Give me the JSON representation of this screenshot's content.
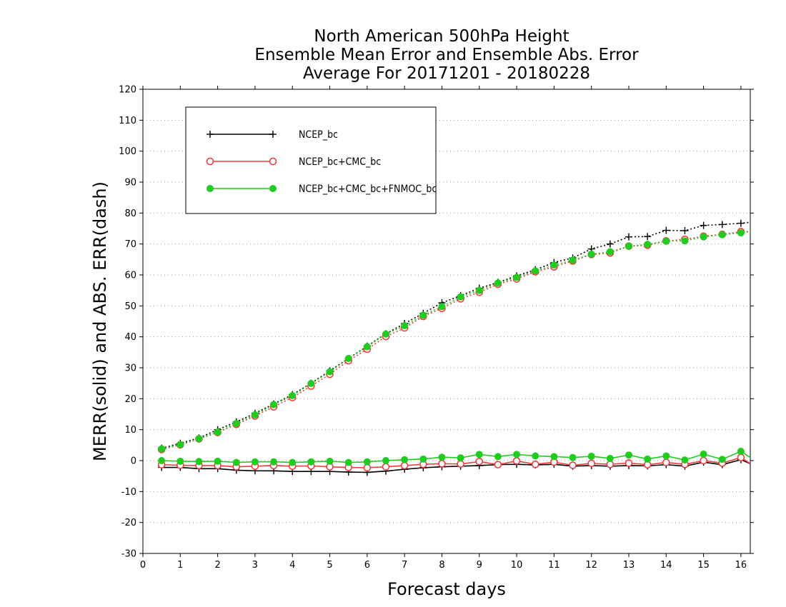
{
  "chart_data": {
    "type": "line",
    "title_lines": [
      "North American 500hPa Height",
      "Ensemble Mean Error and Ensemble Abs. Error",
      "Average For 20171201 - 20180228"
    ],
    "xlabel": "Forecast days",
    "ylabel": "MERR(solid) and ABS. ERR(dash)",
    "xlim": [
      0,
      16.25
    ],
    "ylim": [
      -30,
      120
    ],
    "x_ticks": [
      "0",
      "1",
      "2",
      "3",
      "4",
      "5",
      "6",
      "7",
      "8",
      "9",
      "10",
      "11",
      "12",
      "13",
      "14",
      "15",
      "16"
    ],
    "y_ticks": [
      "120",
      "110",
      "100",
      "90",
      "80",
      "70",
      "60",
      "50",
      "40",
      "30",
      "20",
      "10",
      "0",
      "-10",
      "-20",
      "-30"
    ],
    "grid": true,
    "legend_position": "top-left",
    "x": [
      0.5,
      1,
      1.5,
      2,
      2.5,
      3,
      3.5,
      4,
      4.5,
      5,
      5.5,
      6,
      6.5,
      7,
      7.5,
      8,
      8.5,
      9,
      9.5,
      10,
      10.5,
      11,
      11.5,
      12,
      12.5,
      13,
      13.5,
      14,
      14.5,
      15,
      15.5,
      16,
      16.25
    ],
    "series": [
      {
        "name": "NCEP_bc",
        "color": "#000000",
        "marker": "plus",
        "merr": [
          -2.2,
          -2.2,
          -2.6,
          -2.6,
          -3.1,
          -3.3,
          -3.3,
          -3.5,
          -3.5,
          -3.5,
          -3.7,
          -3.8,
          -3.4,
          -2.8,
          -2.3,
          -2.0,
          -1.8,
          -1.6,
          -1.3,
          -1.2,
          -1.4,
          -1.2,
          -1.8,
          -1.6,
          -1.8,
          -1.6,
          -1.7,
          -1.3,
          -1.8,
          -0.5,
          -1.3,
          0.3,
          -1.0
        ],
        "abs_err": [
          4.0,
          5.6,
          7.3,
          10.0,
          12.5,
          15.3,
          18.3,
          21.3,
          25.0,
          29.0,
          33.0,
          37.0,
          41.0,
          44.3,
          47.6,
          51.0,
          53.3,
          55.7,
          57.6,
          59.7,
          61.7,
          64.0,
          65.5,
          68.4,
          70.0,
          72.3,
          72.4,
          74.4,
          74.3,
          76.0,
          76.3,
          76.7,
          77.0
        ]
      },
      {
        "name": "NCEP_bc+CMC_bc",
        "color": "#f03c3c",
        "marker": "open-circle",
        "merr": [
          -1.3,
          -1.5,
          -1.6,
          -1.6,
          -2.0,
          -1.8,
          -1.6,
          -1.8,
          -1.7,
          -2.0,
          -2.2,
          -2.3,
          -2.0,
          -1.6,
          -1.2,
          -1.0,
          -1.1,
          -0.3,
          -1.3,
          -0.1,
          -1.2,
          -0.5,
          -1.5,
          -0.9,
          -1.2,
          -0.8,
          -1.3,
          -0.6,
          -1.2,
          0.0,
          -0.8,
          1.0,
          -1.0
        ],
        "abs_err": [
          3.6,
          5.1,
          7.0,
          9.1,
          11.7,
          14.4,
          17.4,
          20.4,
          24.1,
          27.9,
          32.3,
          36.0,
          40.1,
          42.9,
          46.6,
          49.2,
          52.3,
          54.4,
          57.0,
          58.7,
          61.0,
          62.6,
          64.5,
          66.6,
          67.1,
          69.3,
          69.6,
          71.0,
          71.5,
          72.5,
          73.1,
          74.0,
          74.0
        ]
      },
      {
        "name": "NCEP_bc+CMC_bc+FNMOC_bc",
        "color": "#20cc20",
        "marker": "filled-circle",
        "merr": [
          0.0,
          -0.2,
          -0.3,
          -0.2,
          -0.6,
          -0.4,
          -0.4,
          -0.6,
          -0.4,
          -0.2,
          -0.6,
          -0.4,
          0.0,
          0.3,
          0.5,
          1.1,
          0.9,
          2.0,
          1.3,
          2.0,
          1.5,
          1.3,
          1.0,
          1.4,
          0.7,
          1.8,
          0.5,
          1.5,
          0.2,
          2.1,
          0.4,
          3.0,
          1.0
        ],
        "abs_err": [
          3.8,
          5.2,
          7.1,
          9.2,
          12.0,
          14.8,
          18.1,
          21.0,
          24.9,
          28.7,
          33.0,
          36.8,
          40.9,
          43.6,
          47.0,
          49.8,
          52.9,
          55.0,
          57.4,
          59.2,
          61.3,
          63.2,
          64.8,
          66.7,
          67.5,
          69.3,
          69.9,
          70.9,
          71.0,
          72.3,
          73.0,
          73.6,
          74.0
        ]
      }
    ]
  }
}
